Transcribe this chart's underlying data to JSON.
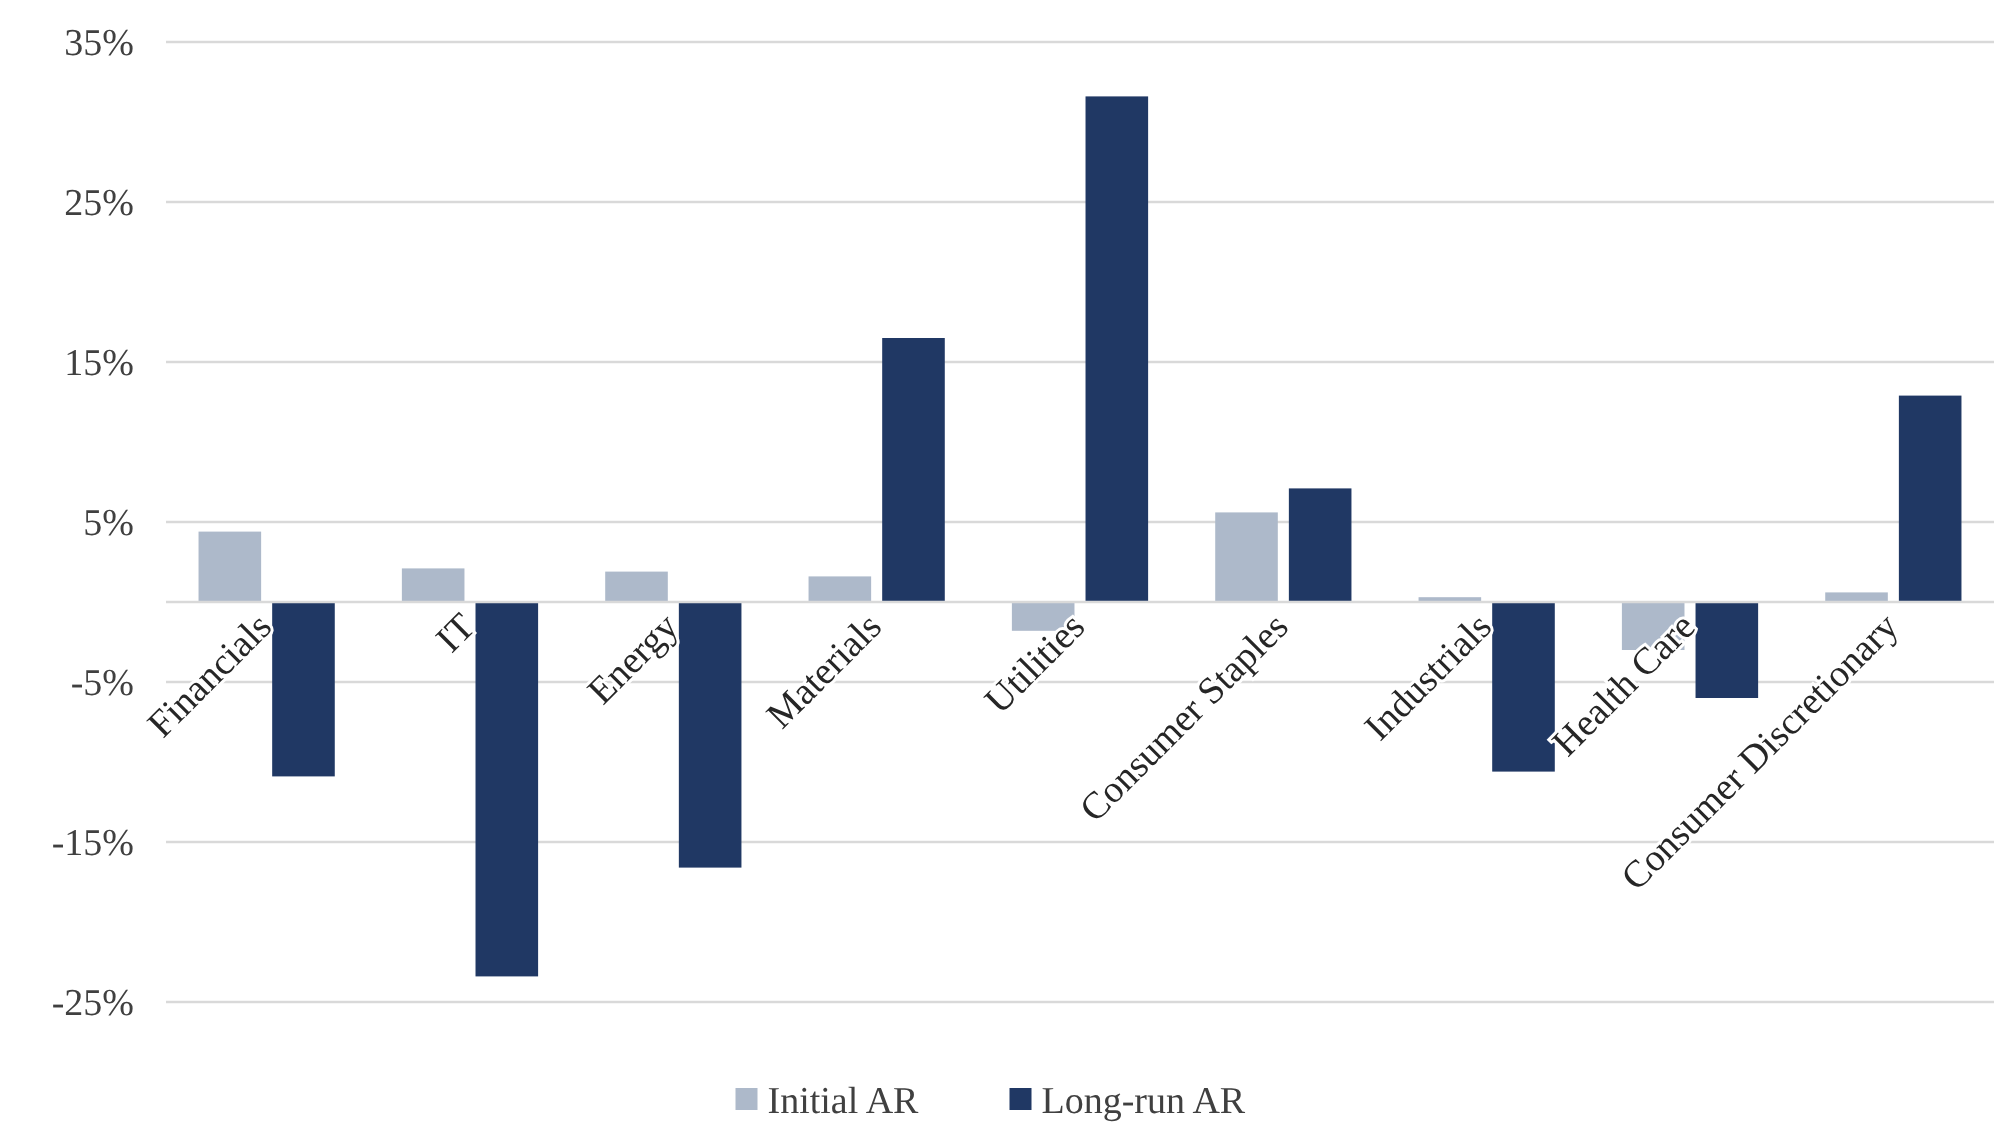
{
  "chart_data": {
    "type": "bar",
    "categories": [
      "Financials",
      "IT",
      "Energy",
      "Materials",
      "Utilities",
      "Consumer Staples",
      "Industrials",
      "Health Care",
      "Consumer Discretionary"
    ],
    "series": [
      {
        "name": "Initial AR",
        "color": "#adb9ca",
        "values": [
          4.4,
          2.1,
          1.9,
          1.6,
          -1.8,
          5.6,
          0.3,
          -3.0,
          0.6
        ]
      },
      {
        "name": "Long-run AR",
        "color": "#203864",
        "values": [
          -10.9,
          -23.4,
          -16.6,
          16.5,
          31.6,
          7.1,
          -10.6,
          -6.0,
          12.9
        ]
      }
    ],
    "ylim": [
      -25,
      35
    ],
    "yticks": [
      {
        "value": -25,
        "label": "-25%"
      },
      {
        "value": -15,
        "label": "-15%"
      },
      {
        "value": -5,
        "label": "-5%"
      },
      {
        "value": 5,
        "label": "5%"
      },
      {
        "value": 15,
        "label": "15%"
      },
      {
        "value": 25,
        "label": "25%"
      },
      {
        "value": 35,
        "label": "35%"
      }
    ],
    "grid": "y",
    "legend": "bottom"
  }
}
